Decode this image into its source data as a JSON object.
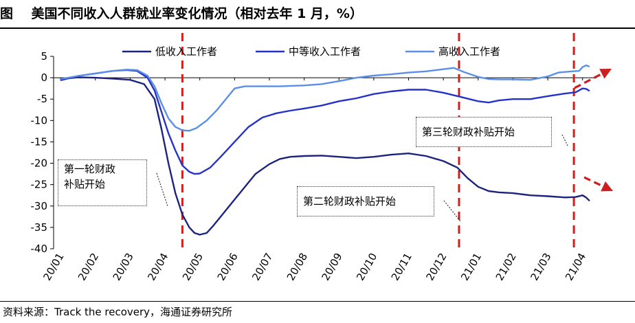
{
  "header": {
    "title": "图    美国不同收入人群就业率变化情况（相对去年 1 月，%）"
  },
  "source": "资料来源：Track the recovery，海通证券研究所",
  "chart_data": {
    "type": "line",
    "title": "美国不同收入人群就业率变化情况（相对去年 1 月，%）",
    "xlabel": "",
    "ylabel": "",
    "ylim": [
      -40,
      5
    ],
    "yticks": [
      5,
      0,
      -5,
      -10,
      -15,
      -20,
      -25,
      -30,
      -35,
      -40
    ],
    "xlim": [
      0.8,
      16.4
    ],
    "x_tick_labels": [
      "20/01",
      "20/02",
      "20/03",
      "20/04",
      "20/05",
      "20/06",
      "20/07",
      "20/08",
      "20/09",
      "20/10",
      "20/11",
      "20/12",
      "21/01",
      "21/02",
      "21/03",
      "21/04"
    ],
    "legend_position": "top",
    "grid": false,
    "series": [
      {
        "name": "低收入工作者",
        "color": "#1a237e",
        "points": [
          [
            1.0,
            -0.3
          ],
          [
            1.5,
            0.1
          ],
          [
            2.0,
            0.0
          ],
          [
            2.5,
            -0.2
          ],
          [
            3.0,
            -0.5
          ],
          [
            3.4,
            -1.5
          ],
          [
            3.7,
            -5
          ],
          [
            3.9,
            -12
          ],
          [
            4.1,
            -20
          ],
          [
            4.3,
            -27
          ],
          [
            4.5,
            -32
          ],
          [
            4.7,
            -35
          ],
          [
            4.85,
            -36.3
          ],
          [
            5.0,
            -36.7
          ],
          [
            5.2,
            -36.3
          ],
          [
            5.4,
            -34.5
          ],
          [
            5.7,
            -31.5
          ],
          [
            6.0,
            -28.5
          ],
          [
            6.3,
            -25.5
          ],
          [
            6.6,
            -22.5
          ],
          [
            7.0,
            -20.2
          ],
          [
            7.3,
            -19
          ],
          [
            7.6,
            -18.5
          ],
          [
            8.0,
            -18.3
          ],
          [
            8.5,
            -18.2
          ],
          [
            9.0,
            -18.5
          ],
          [
            9.5,
            -18.8
          ],
          [
            10.0,
            -18.5
          ],
          [
            10.5,
            -18
          ],
          [
            11.0,
            -17.7
          ],
          [
            11.5,
            -18.3
          ],
          [
            12.0,
            -19.5
          ],
          [
            12.4,
            -21
          ],
          [
            12.7,
            -23.5
          ],
          [
            13.0,
            -25.5
          ],
          [
            13.3,
            -26.5
          ],
          [
            13.6,
            -26.8
          ],
          [
            14.0,
            -27
          ],
          [
            14.5,
            -27.5
          ],
          [
            15.0,
            -27.7
          ],
          [
            15.5,
            -28
          ],
          [
            15.8,
            -27.9
          ],
          [
            16.0,
            -27.5
          ],
          [
            16.1,
            -28
          ],
          [
            16.2,
            -28.8
          ]
        ]
      },
      {
        "name": "中等收入工作者",
        "color": "#2432c8",
        "points": [
          [
            1.0,
            -0.6
          ],
          [
            1.5,
            0.4
          ],
          [
            2.0,
            1.0
          ],
          [
            2.5,
            1.6
          ],
          [
            2.9,
            1.8
          ],
          [
            3.2,
            1.6
          ],
          [
            3.5,
            0
          ],
          [
            3.7,
            -3
          ],
          [
            3.9,
            -8
          ],
          [
            4.1,
            -13
          ],
          [
            4.3,
            -17
          ],
          [
            4.5,
            -20.5
          ],
          [
            4.7,
            -22
          ],
          [
            4.85,
            -22.5
          ],
          [
            5.0,
            -22.4
          ],
          [
            5.3,
            -21
          ],
          [
            5.6,
            -18.5
          ],
          [
            6.0,
            -15
          ],
          [
            6.4,
            -11.5
          ],
          [
            6.8,
            -9.3
          ],
          [
            7.2,
            -8.3
          ],
          [
            7.6,
            -7.7
          ],
          [
            8.0,
            -7.2
          ],
          [
            8.5,
            -6.5
          ],
          [
            9.0,
            -5.5
          ],
          [
            9.5,
            -4.8
          ],
          [
            10.0,
            -3.8
          ],
          [
            10.5,
            -3.2
          ],
          [
            11.0,
            -2.8
          ],
          [
            11.5,
            -2.8
          ],
          [
            12.0,
            -3.5
          ],
          [
            12.5,
            -4.5
          ],
          [
            13.0,
            -5.5
          ],
          [
            13.3,
            -5.8
          ],
          [
            13.6,
            -5.3
          ],
          [
            14.0,
            -5
          ],
          [
            14.5,
            -5
          ],
          [
            15.0,
            -4.3
          ],
          [
            15.5,
            -3.7
          ],
          [
            15.8,
            -3.4
          ],
          [
            16.0,
            -2.5
          ],
          [
            16.1,
            -2.6
          ],
          [
            16.2,
            -3.1
          ]
        ]
      },
      {
        "name": "高收入工作者",
        "color": "#5b8ee6",
        "points": [
          [
            1.0,
            -0.3
          ],
          [
            1.5,
            0.4
          ],
          [
            2.0,
            1.0
          ],
          [
            2.5,
            1.6
          ],
          [
            2.9,
            1.9
          ],
          [
            3.2,
            1.8
          ],
          [
            3.5,
            0.5
          ],
          [
            3.7,
            -2
          ],
          [
            3.9,
            -6
          ],
          [
            4.1,
            -9.5
          ],
          [
            4.3,
            -11.5
          ],
          [
            4.5,
            -12.3
          ],
          [
            4.7,
            -12.4
          ],
          [
            4.9,
            -11.8
          ],
          [
            5.2,
            -10
          ],
          [
            5.5,
            -7.5
          ],
          [
            5.8,
            -4.5
          ],
          [
            6.0,
            -2.5
          ],
          [
            6.3,
            -2.0
          ],
          [
            6.8,
            -2.0
          ],
          [
            7.3,
            -2.0
          ],
          [
            8.0,
            -1.8
          ],
          [
            8.5,
            -1.5
          ],
          [
            9.0,
            -0.8
          ],
          [
            9.5,
            0
          ],
          [
            10.0,
            0.5
          ],
          [
            10.5,
            0.8
          ],
          [
            11.0,
            1.2
          ],
          [
            11.5,
            1.5
          ],
          [
            12.0,
            2.0
          ],
          [
            12.3,
            2.3
          ],
          [
            12.6,
            1.3
          ],
          [
            13.0,
            0.2
          ],
          [
            13.3,
            -0.3
          ],
          [
            13.6,
            -0.4
          ],
          [
            14.0,
            -0.4
          ],
          [
            14.5,
            -0.5
          ],
          [
            15.0,
            0.3
          ],
          [
            15.3,
            1.2
          ],
          [
            15.7,
            1.5
          ],
          [
            15.9,
            1.6
          ],
          [
            16.0,
            2.5
          ],
          [
            16.1,
            2.9
          ],
          [
            16.2,
            2.6
          ]
        ]
      }
    ],
    "event_lines": [
      4.5,
      12.45,
      15.75
    ],
    "annotations": [
      {
        "id": "first",
        "lines": [
          "第一轮财政",
          "补贴开始"
        ]
      },
      {
        "id": "second",
        "lines": [
          "第二轮财政补贴开始"
        ]
      },
      {
        "id": "third",
        "lines": [
          "第三轮财政补贴开始"
        ]
      }
    ]
  }
}
